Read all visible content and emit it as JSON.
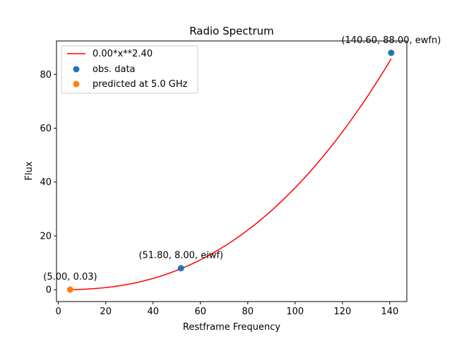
{
  "chart_data": {
    "type": "line",
    "title": "Radio Spectrum",
    "xlabel": "Restframe Frequency",
    "ylabel": "Flux",
    "xlim": [
      -0.8,
      147.2
    ],
    "ylim": [
      -4.4,
      92.4
    ],
    "xticks": [
      0,
      20,
      40,
      60,
      80,
      100,
      120,
      140
    ],
    "yticks": [
      0,
      20,
      40,
      60,
      80
    ],
    "grid": false,
    "legend_position": "top-left",
    "fit_line": {
      "name": "0.00*x**2.40",
      "color": "#ff0000",
      "coefficient": 0.0006,
      "exponent": 2.4,
      "x_range": [
        5.0,
        140.6
      ]
    },
    "series": [
      {
        "name": "obs. data",
        "color": "#1f77b4",
        "points": [
          {
            "x": 51.8,
            "y": 8.0,
            "label": "(51.80, 8.00, eiwf)"
          },
          {
            "x": 140.6,
            "y": 88.0,
            "label": "(140.60, 88.00, ewfn)"
          }
        ]
      },
      {
        "name": "predicted at 5.0 GHz",
        "color": "#ff7f0e",
        "points": [
          {
            "x": 5.0,
            "y": 0.03,
            "label": "(5.00, 0.03)"
          }
        ]
      }
    ]
  }
}
